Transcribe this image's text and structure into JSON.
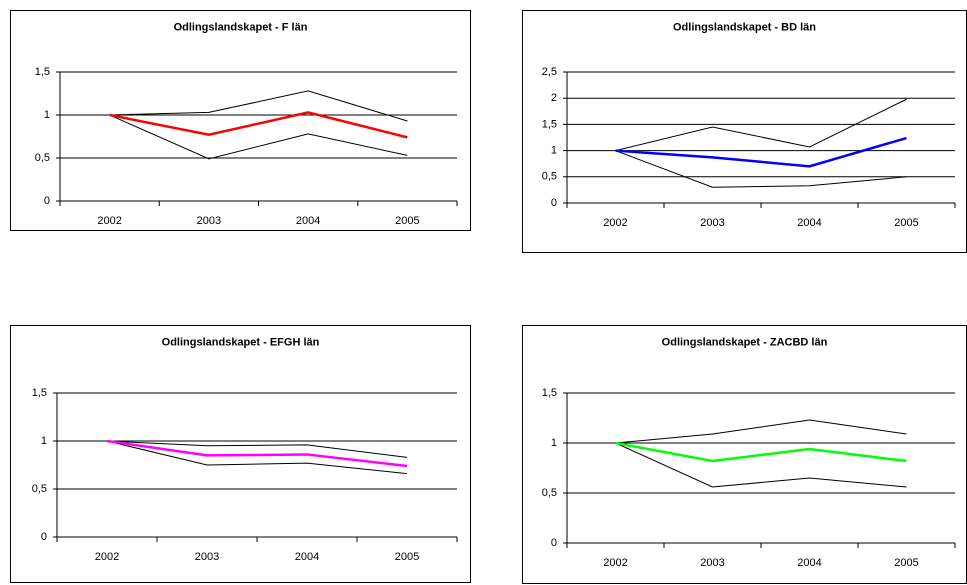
{
  "chart_data": [
    {
      "type": "line",
      "title": "Odlingslandskapet - F län",
      "categories": [
        "2002",
        "2003",
        "2004",
        "2005"
      ],
      "series": [
        {
          "color": "#000000",
          "values": [
            1,
            1.03,
            1.28,
            0.93
          ]
        },
        {
          "color": "#000000",
          "values": [
            1,
            0.49,
            0.78,
            0.53
          ]
        },
        {
          "color": "#ff0000",
          "values": [
            1,
            0.77,
            1.03,
            0.74
          ]
        }
      ],
      "ylim": [
        0,
        1.5
      ],
      "yticks": [
        0,
        {
          "value": 0.5,
          "label": "0,5"
        },
        1,
        {
          "value": 1.5,
          "label": "1,5"
        }
      ],
      "grid": true
    },
    {
      "type": "line",
      "title": "Odlingslandskapet - BD län",
      "categories": [
        "2002",
        "2003",
        "2004",
        "2005"
      ],
      "series": [
        {
          "color": "#000000",
          "values": [
            1,
            1.45,
            1.07,
            1.98
          ]
        },
        {
          "color": "#000000",
          "values": [
            1,
            0.3,
            0.33,
            0.5
          ]
        },
        {
          "color": "#0000ff",
          "values": [
            1,
            0.87,
            0.7,
            1.24
          ]
        }
      ],
      "ylim": [
        0,
        2.5
      ],
      "yticks": [
        0,
        {
          "value": 0.5,
          "label": "0,5"
        },
        1,
        {
          "value": 1.5,
          "label": "1,5"
        },
        2,
        {
          "value": 2.5,
          "label": "2,5"
        }
      ],
      "grid": true
    },
    {
      "type": "line",
      "title": "Odlingslandskapet - EFGH län",
      "categories": [
        "2002",
        "2003",
        "2004",
        "2005"
      ],
      "series": [
        {
          "color": "#000000",
          "values": [
            1,
            0.95,
            0.96,
            0.83
          ]
        },
        {
          "color": "#000000",
          "values": [
            1,
            0.75,
            0.77,
            0.66
          ]
        },
        {
          "color": "#ff00ff",
          "values": [
            1,
            0.85,
            0.86,
            0.74
          ]
        }
      ],
      "ylim": [
        0,
        1.5
      ],
      "yticks": [
        0,
        {
          "value": 0.5,
          "label": "0,5"
        },
        1,
        {
          "value": 1.5,
          "label": "1,5"
        }
      ],
      "grid": true
    },
    {
      "type": "line",
      "title": "Odlingslandskapet - ZACBD län",
      "categories": [
        "2002",
        "2003",
        "2004",
        "2005"
      ],
      "series": [
        {
          "color": "#000000",
          "values": [
            1,
            1.09,
            1.23,
            1.09
          ]
        },
        {
          "color": "#000000",
          "values": [
            1,
            0.56,
            0.65,
            0.56
          ]
        },
        {
          "color": "#00ff00",
          "values": [
            1,
            0.82,
            0.94,
            0.82
          ]
        }
      ],
      "ylim": [
        0,
        1.5
      ],
      "yticks": [
        0,
        {
          "value": 0.5,
          "label": "0,5"
        },
        1,
        {
          "value": 1.5,
          "label": "1,5"
        }
      ],
      "grid": true
    }
  ]
}
